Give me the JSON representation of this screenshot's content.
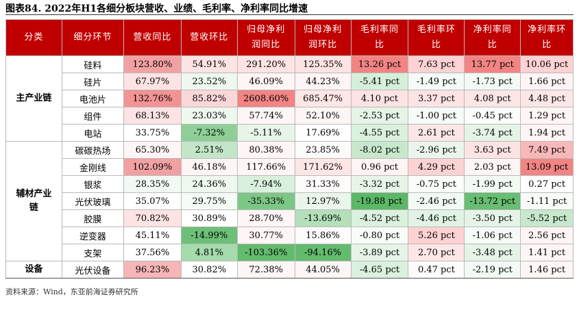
{
  "title": "图表84. 2022年H1各细分板块营收、业绩、毛利率、净利率同比增速",
  "headers": [
    "分类",
    "细分环节",
    "营收同比",
    "营收环比",
    "归母净利润同比",
    "归母净利润环比",
    "毛利率同比",
    "毛利率环比",
    "净利率同比",
    "净利率环比"
  ],
  "groups": [
    {
      "category": "主产业链",
      "rows": [
        {
          "name": "硅料",
          "values": [
            "123.80%",
            "54.91%",
            "291.20%",
            "125.35%",
            "13.26 pct",
            "7.63 pct",
            "13.77 pct",
            "10.06 pct"
          ],
          "colors": [
            "#f2a1a2",
            "#fde3e4",
            "#fde3e4",
            "#fde3e4",
            "#f28484",
            "#fcd2d3",
            "#f28484",
            "#fcd2d3"
          ]
        },
        {
          "name": "硅片",
          "values": [
            "67.97%",
            "23.52%",
            "46.09%",
            "44.23%",
            "-5.41 pct",
            "-1.49 pct",
            "-1.73 pct",
            "1.66 pct"
          ],
          "colors": [
            "#fde3e4",
            "#eef8ef",
            "#fef5f5",
            "#fef5f5",
            "#d6efda",
            "#f5fbf6",
            "#f2faf3",
            "#fef4f4"
          ]
        },
        {
          "name": "电池片",
          "values": [
            "132.76%",
            "85.82%",
            "2608.60%",
            "685.47%",
            "4.10 pct",
            "3.37 pct",
            "4.08 pct",
            "4.48 pct"
          ],
          "colors": [
            "#f29394",
            "#fcd7d8",
            "#f28484",
            "#fde6e6",
            "#fde3e4",
            "#fde3e4",
            "#fde6e6",
            "#fde6e6"
          ]
        },
        {
          "name": "组件",
          "values": [
            "68.13%",
            "23.03%",
            "57.74%",
            "52.10%",
            "-2.53 pct",
            "-1.00 pct",
            "-0.45 pct",
            "1.29 pct"
          ],
          "colors": [
            "#fde3e4",
            "#eef8ef",
            "#fef5f5",
            "#fef5f5",
            "#e5f4e7",
            "#f5fbf6",
            "#fafdfa",
            "#fef5f5"
          ]
        },
        {
          "name": "电站",
          "values": [
            "33.75%",
            "-7.32%",
            "-5.11%",
            "17.69%",
            "-4.55 pct",
            "2.61 pct",
            "-3.74 pct",
            "1.94 pct"
          ],
          "colors": [
            "#ffffff",
            "#8ecf97",
            "#e7f5e9",
            "#ffffff",
            "#daf1dd",
            "#fde6e6",
            "#e5f4e7",
            "#fef4f4"
          ]
        }
      ]
    },
    {
      "category": "辅材产业链",
      "rows": [
        {
          "name": "碳碳热场",
          "values": [
            "65.30%",
            "2.51%",
            "80.38%",
            "23.85%",
            "-8.02 pct",
            "-2.96 pct",
            "3.63 pct",
            "7.49 pct"
          ],
          "colors": [
            "#fef5f5",
            "#c2e6c7",
            "#fef5f5",
            "#fefbfb",
            "#c7e8cc",
            "#eaf6ec",
            "#fde3e4",
            "#f8b8b9"
          ]
        },
        {
          "name": "金刚线",
          "values": [
            "102.09%",
            "46.18%",
            "117.66%",
            "171.62%",
            "0.96 pct",
            "4.29 pct",
            "2.03 pct",
            "13.09 pct"
          ],
          "colors": [
            "#f2a1a2",
            "#fef5f5",
            "#fef5f5",
            "#fde6e6",
            "#fef4f4",
            "#fcd2d3",
            "#fef5f5",
            "#f28484"
          ]
        },
        {
          "name": "银浆",
          "values": [
            "28.35%",
            "24.36%",
            "-7.94%",
            "31.33%",
            "-3.32 pct",
            "-0.75 pct",
            "-1.99 pct",
            "0.27 pct"
          ],
          "colors": [
            "#f1f9f2",
            "#eef8ef",
            "#d9f0dc",
            "#fefbfb",
            "#e7f5e9",
            "#fafdfa",
            "#f2faf3",
            "#ffffff"
          ]
        },
        {
          "name": "光伏玻璃",
          "values": [
            "35.07%",
            "29.75%",
            "-35.33%",
            "12.97%",
            "-19.88 pct",
            "-2.46 pct",
            "-13.72 pct",
            "-1.11 pct"
          ],
          "colors": [
            "#ffffff",
            "#f5fbf6",
            "#7cc786",
            "#eaf6ec",
            "#5bb866",
            "#f2faf3",
            "#68be72",
            "#f8fcf8"
          ]
        },
        {
          "name": "胶膜",
          "values": [
            "70.82%",
            "30.89%",
            "28.70%",
            "-13.69%",
            "-4.52 pct",
            "-4.46 pct",
            "-3.50 pct",
            "-5.52 pct"
          ],
          "colors": [
            "#fde3e4",
            "#ffffff",
            "#fef5f5",
            "#b3e0b9",
            "#daf1dd",
            "#e1f3e4",
            "#e5f4e7",
            "#c7e8cc"
          ]
        },
        {
          "name": "逆变器",
          "values": [
            "45.11%",
            "-14.99%",
            "30.77%",
            "15.86%",
            "-0.80 pct",
            "5.26 pct",
            "-1.06 pct",
            "2.56 pct"
          ],
          "colors": [
            "#ffffff",
            "#6dc077",
            "#fef5f5",
            "#fefbfb",
            "#f8fcf8",
            "#fcd2d3",
            "#f5fbf6",
            "#fef4f4"
          ]
        },
        {
          "name": "支架",
          "values": [
            "37.56%",
            "4.81%",
            "-103.36%",
            "-94.16%",
            "-3.89 pct",
            "2.70 pct",
            "-3.48 pct",
            "1.41 pct"
          ],
          "colors": [
            "#ffffff",
            "#a6dbad",
            "#63bc6e",
            "#63bc6e",
            "#e5f4e7",
            "#fde6e6",
            "#e5f4e7",
            "#fef5f5"
          ]
        }
      ]
    },
    {
      "category": "设备",
      "rows": [
        {
          "name": "光伏设备",
          "values": [
            "96.23%",
            "30.82%",
            "72.38%",
            "44.05%",
            "-4.65 pct",
            "0.47 pct",
            "-2.19 pct",
            "1.46 pct"
          ],
          "colors": [
            "#f6b6b7",
            "#ffffff",
            "#fef5f5",
            "#fef5f5",
            "#daf1dd",
            "#fefbfb",
            "#f2faf3",
            "#fef5f5"
          ]
        }
      ]
    }
  ],
  "source": "资料来源：Wind，东亚前海证券研究所"
}
